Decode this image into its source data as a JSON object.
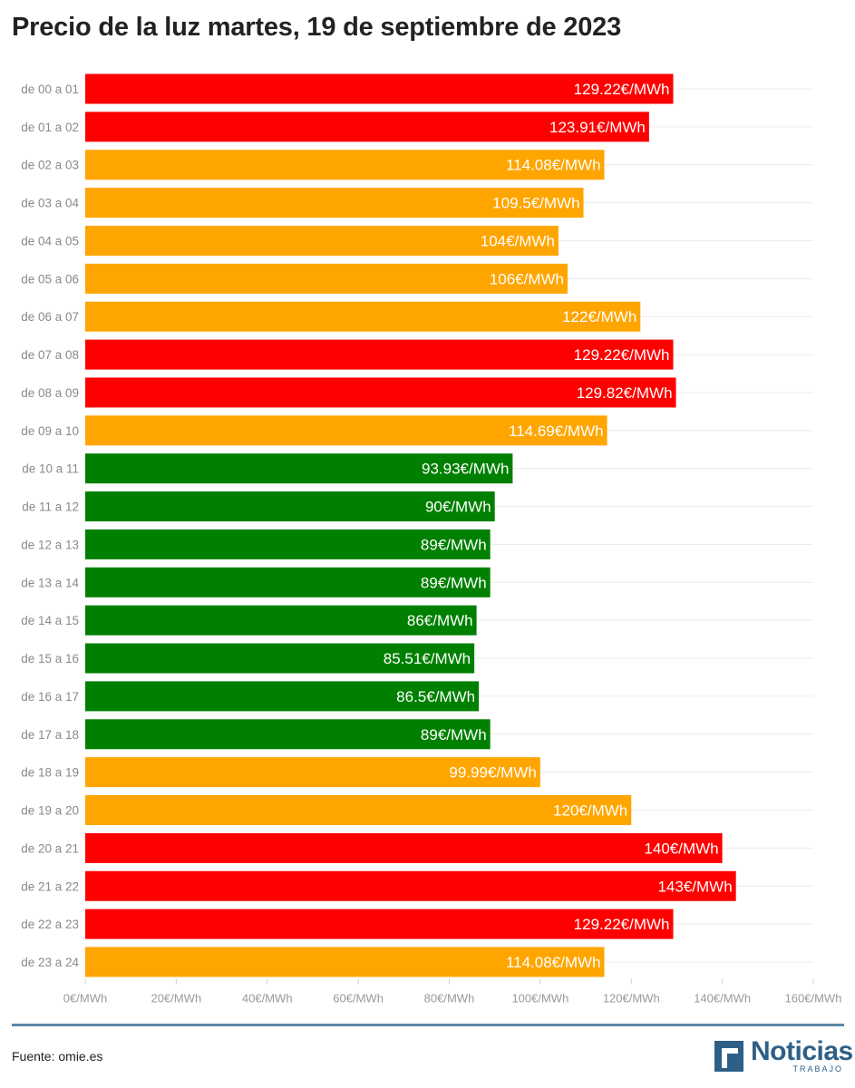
{
  "chart_data": {
    "type": "bar",
    "orientation": "horizontal",
    "title": "Precio de la luz martes, 19 de septiembre de 2023",
    "categories": [
      "de 00 a 01",
      "de 01 a 02",
      "de 02 a 03",
      "de 03 a 04",
      "de 04 a 05",
      "de 05 a 06",
      "de 06 a 07",
      "de 07 a 08",
      "de 08 a 09",
      "de 09 a 10",
      "de 10 a 11",
      "de 11 a 12",
      "de 12 a 13",
      "de 13 a 14",
      "de 14 a 15",
      "de 15 a 16",
      "de 16 a 17",
      "de 17 a 18",
      "de 18 a 19",
      "de 19 a 20",
      "de 20 a 21",
      "de 21 a 22",
      "de 22 a 23",
      "de 23 a 24"
    ],
    "values": [
      129.22,
      123.91,
      114.08,
      109.5,
      104,
      106,
      122,
      129.22,
      129.82,
      114.69,
      93.93,
      90,
      89,
      89,
      86,
      85.51,
      86.5,
      89,
      99.99,
      120,
      140,
      143,
      129.22,
      114.08
    ],
    "value_labels": [
      "129.22€/MWh",
      "123.91€/MWh",
      "114.08€/MWh",
      "109.5€/MWh",
      "104€/MWh",
      "106€/MWh",
      "122€/MWh",
      "129.22€/MWh",
      "129.82€/MWh",
      "114.69€/MWh",
      "93.93€/MWh",
      "90€/MWh",
      "89€/MWh",
      "89€/MWh",
      "86€/MWh",
      "85.51€/MWh",
      "86.5€/MWh",
      "89€/MWh",
      "99.99€/MWh",
      "120€/MWh",
      "140€/MWh",
      "143€/MWh",
      "129.22€/MWh",
      "114.08€/MWh"
    ],
    "bar_colors": [
      "#ff0000",
      "#ff0000",
      "#ffa500",
      "#ffa500",
      "#ffa500",
      "#ffa500",
      "#ffa500",
      "#ff0000",
      "#ff0000",
      "#ffa500",
      "#008000",
      "#008000",
      "#008000",
      "#008000",
      "#008000",
      "#008000",
      "#008000",
      "#008000",
      "#ffa500",
      "#ffa500",
      "#ff0000",
      "#ff0000",
      "#ff0000",
      "#ffa500"
    ],
    "xlim": [
      0,
      160
    ],
    "xticks": [
      0,
      20,
      40,
      60,
      80,
      100,
      120,
      140,
      160
    ],
    "xtick_labels": [
      "0€/MWh",
      "20€/MWh",
      "40€/MWh",
      "60€/MWh",
      "80€/MWh",
      "100€/MWh",
      "120€/MWh",
      "140€/MWh",
      "160€/MWh"
    ],
    "grid": true,
    "legend": "none"
  },
  "footer": {
    "source": "Fuente: omie.es",
    "logo_word": "Noticias",
    "logo_sub": "TRABAJO"
  }
}
